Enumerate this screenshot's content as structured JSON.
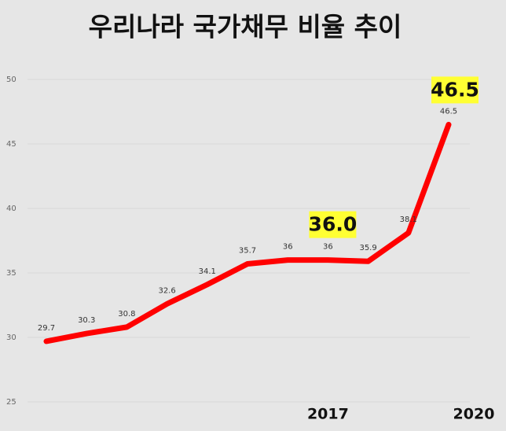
{
  "chart_data": {
    "type": "line",
    "title": "우리나라 국가채무 비율 추이",
    "categories": [
      null,
      null,
      null,
      null,
      null,
      null,
      null,
      "2017",
      null,
      null,
      "2020"
    ],
    "values": [
      29.7,
      30.3,
      30.8,
      32.6,
      34.1,
      35.7,
      36,
      36,
      35.9,
      38.1,
      46.5
    ],
    "color": "#ff0000",
    "ylim": [
      25,
      50
    ],
    "yticks": [
      25,
      30,
      35,
      40,
      45,
      50
    ],
    "grid": true,
    "annotations": [
      {
        "text": "36.0",
        "x": "2017"
      },
      {
        "text": "46.5",
        "x": "2020"
      }
    ]
  }
}
